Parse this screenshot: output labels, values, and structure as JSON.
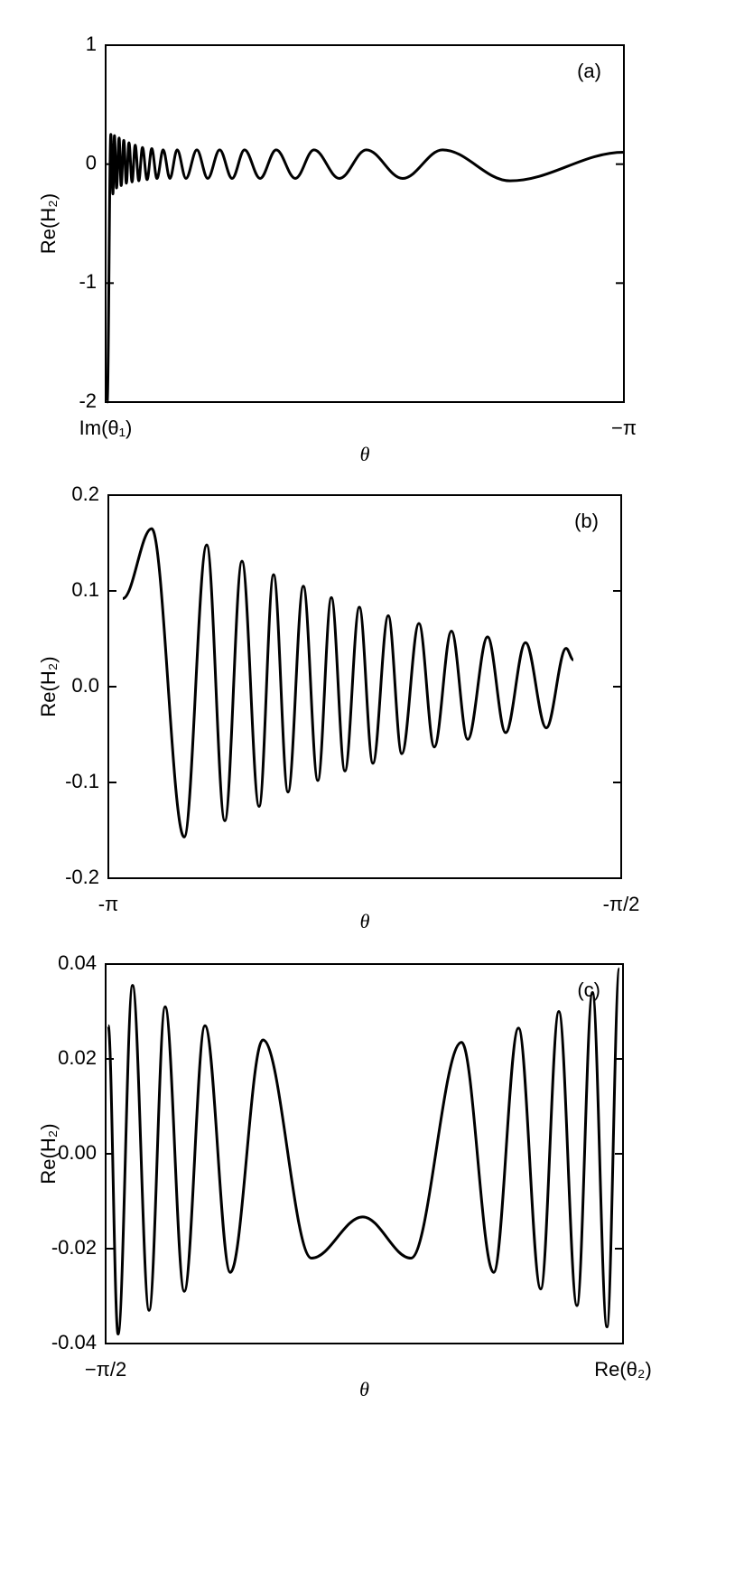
{
  "chart_data": [
    {
      "type": "line",
      "panel_label": "(a)",
      "xlabel": "θ",
      "ylabel": "Re(H₂)",
      "color": "#000000",
      "xlim": [
        0,
        1
      ],
      "xticks": [
        {
          "value": 0,
          "label": "Im(θ₁)"
        },
        {
          "value": 1,
          "label": "−π"
        }
      ],
      "ylim": [
        -2,
        1
      ],
      "yticks": [
        -2,
        -1,
        0,
        1
      ],
      "x": [
        0.003,
        0.01,
        0.014,
        0.017,
        0.021,
        0.026,
        0.03,
        0.035,
        0.04,
        0.045,
        0.051,
        0.057,
        0.064,
        0.071,
        0.08,
        0.089,
        0.099,
        0.111,
        0.124,
        0.138,
        0.155,
        0.176,
        0.197,
        0.22,
        0.244,
        0.268,
        0.298,
        0.329,
        0.366,
        0.402,
        0.451,
        0.503,
        0.573,
        0.65,
        0.78,
        1.0
      ],
      "values": [
        -2,
        0.25,
        -0.25,
        0.24,
        -0.2,
        0.22,
        -0.18,
        0.2,
        -0.16,
        0.18,
        -0.15,
        0.16,
        -0.14,
        0.14,
        -0.13,
        0.13,
        -0.12,
        0.12,
        -0.12,
        0.12,
        -0.12,
        0.12,
        -0.12,
        0.12,
        -0.12,
        0.12,
        -0.12,
        0.12,
        -0.12,
        0.12,
        -0.12,
        0.12,
        -0.12,
        0.12,
        -0.14,
        0.1
      ]
    },
    {
      "type": "line",
      "panel_label": "(b)",
      "xlabel": "θ",
      "ylabel": "Re(H₂)",
      "color": "#000000",
      "xlim": [
        -3.14159,
        -1.5708
      ],
      "xticks": [
        {
          "value": -3.14159,
          "label": "-π"
        },
        {
          "value": -1.5708,
          "label": "-π/2"
        }
      ],
      "ylim": [
        -0.2,
        0.2
      ],
      "yticks": [
        -0.2,
        -0.1,
        {
          "value": 0,
          "label": "0.0"
        },
        0.1,
        0.2
      ],
      "x": [
        -3.0973,
        -3.0089,
        -2.9093,
        -2.8402,
        -2.7849,
        -2.7323,
        -2.6798,
        -2.6355,
        -2.5913,
        -2.5443,
        -2.5,
        -2.4585,
        -2.417,
        -2.3728,
        -2.3313,
        -2.2843,
        -2.2428,
        -2.1903,
        -2.1433,
        -2.0907,
        -2.0409,
        -1.9801,
        -1.9248,
        -1.8639,
        -1.8003,
        -1.7395,
        -1.7174
      ],
      "values": [
        0.092,
        0.165,
        -0.157,
        0.148,
        -0.14,
        0.131,
        -0.125,
        0.117,
        -0.11,
        0.105,
        -0.098,
        0.093,
        -0.088,
        0.083,
        -0.08,
        0.074,
        -0.07,
        0.066,
        -0.063,
        0.058,
        -0.055,
        0.052,
        -0.048,
        0.046,
        -0.043,
        0.04,
        0.028
      ]
    },
    {
      "type": "line",
      "panel_label": "(c)",
      "xlabel": "θ",
      "ylabel": "Re(H₂)",
      "color": "#000000",
      "xlim": [
        0,
        1
      ],
      "xticks": [
        {
          "value": 0,
          "label": "−π/2"
        },
        {
          "value": 1,
          "label": "Re(θ₂)"
        }
      ],
      "ylim": [
        -0.04,
        0.04
      ],
      "yticks": [
        -0.04,
        -0.02,
        {
          "value": 0,
          "label": "0.00"
        },
        0.02,
        0.04
      ],
      "x": [
        0.005,
        0.024,
        0.052,
        0.084,
        0.115,
        0.152,
        0.192,
        0.241,
        0.304,
        0.398,
        0.497,
        0.59,
        0.688,
        0.75,
        0.798,
        0.841,
        0.876,
        0.911,
        0.941,
        0.969,
        0.993
      ],
      "values": [
        0.027,
        -0.038,
        0.0355,
        -0.033,
        0.031,
        -0.029,
        0.027,
        -0.025,
        0.024,
        -0.022,
        -0.0133,
        -0.022,
        0.0235,
        -0.025,
        0.0265,
        -0.0285,
        0.03,
        -0.032,
        0.034,
        -0.0365,
        0.039
      ]
    }
  ]
}
